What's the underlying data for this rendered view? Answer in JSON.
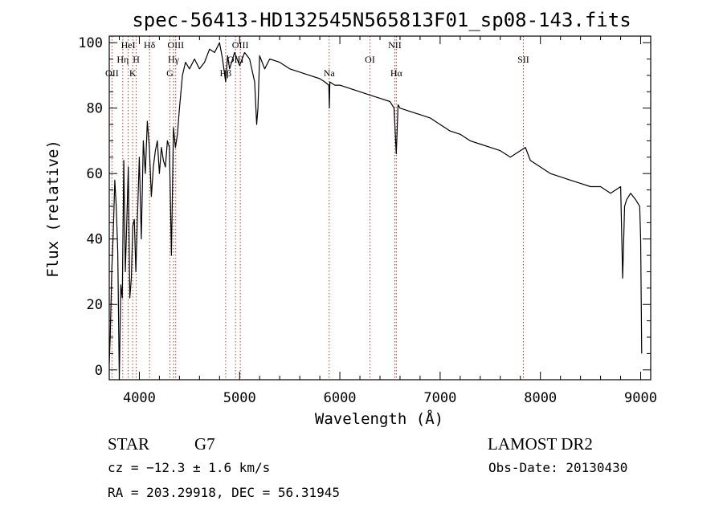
{
  "chart_data": {
    "type": "line",
    "title": "spec-56413-HD132545N565813F01_sp08-143.fits",
    "xlabel": "Wavelength (Å)",
    "ylabel": "Flux (relative)",
    "xlim": [
      3700,
      9100
    ],
    "ylim": [
      -3,
      102
    ],
    "x_ticks": [
      4000,
      5000,
      6000,
      7000,
      8000,
      9000
    ],
    "y_ticks": [
      0,
      20,
      40,
      60,
      80,
      100
    ],
    "grid": false,
    "series": [
      {
        "x": [
          3700,
          3710,
          3725,
          3740,
          3755,
          3770,
          3785,
          3800,
          3815,
          3830,
          3845,
          3860,
          3875,
          3890,
          3905,
          3920,
          3935,
          3950,
          3965,
          3980,
          4000,
          4020,
          4040,
          4060,
          4080,
          4100,
          4120,
          4140,
          4160,
          4180,
          4200,
          4220,
          4240,
          4260,
          4280,
          4300,
          4320,
          4340,
          4360,
          4380,
          4400,
          4430,
          4460,
          4500,
          4550,
          4600,
          4650,
          4700,
          4750,
          4800,
          4830,
          4861,
          4880,
          4900,
          4950,
          5000,
          5050,
          5100,
          5150,
          5170,
          5183,
          5200,
          5250,
          5300,
          5400,
          5500,
          5600,
          5700,
          5800,
          5850,
          5890,
          5895,
          5900,
          5950,
          6000,
          6100,
          6200,
          6300,
          6400,
          6500,
          6540,
          6563,
          6580,
          6600,
          6700,
          6800,
          6900,
          7000,
          7100,
          7200,
          7300,
          7400,
          7500,
          7600,
          7700,
          7750,
          7800,
          7850,
          7900,
          8000,
          8100,
          8200,
          8300,
          8400,
          8500,
          8600,
          8650,
          8700,
          8750,
          8800,
          8820,
          8840,
          8860,
          8900,
          8950,
          8990,
          9000,
          9010
        ],
        "y": [
          2,
          10,
          30,
          42,
          58,
          50,
          36,
          -3,
          26,
          22,
          64,
          30,
          45,
          62,
          22,
          28,
          44,
          46,
          30,
          45,
          65,
          40,
          70,
          60,
          76,
          68,
          53,
          62,
          67,
          70,
          60,
          68,
          64,
          62,
          70,
          68,
          35,
          74,
          68,
          72,
          80,
          90,
          94,
          92,
          95,
          92,
          94,
          98,
          97,
          100,
          95,
          88,
          96,
          92,
          97,
          93,
          97,
          95,
          88,
          75,
          80,
          96,
          92,
          95,
          94,
          92,
          91,
          90,
          89,
          88,
          87,
          80,
          88,
          87,
          87,
          86,
          85,
          84,
          83,
          82,
          80,
          66,
          81,
          80,
          79,
          78,
          77,
          75,
          73,
          72,
          70,
          69,
          68,
          67,
          65,
          66,
          67,
          68,
          64,
          62,
          60,
          59,
          58,
          57,
          56,
          56,
          55,
          54,
          55,
          56,
          28,
          50,
          52,
          54,
          52,
          50,
          40,
          5
        ]
      }
    ],
    "spectral_lines": [
      {
        "name": "OII",
        "x": 3727,
        "row": 3
      },
      {
        "name": "Hη",
        "x": 3835,
        "row": 2
      },
      {
        "name": "HeI",
        "x": 3889,
        "row": 1
      },
      {
        "name": "K",
        "x": 3934,
        "row": 3
      },
      {
        "name": "H",
        "x": 3969,
        "row": 2
      },
      {
        "name": "Hδ",
        "x": 4102,
        "row": 1
      },
      {
        "name": "G",
        "x": 4305,
        "row": 3
      },
      {
        "name": "Hγ",
        "x": 4341,
        "row": 2
      },
      {
        "name": "OIII",
        "x": 4363,
        "row": 1
      },
      {
        "name": "Hβ",
        "x": 4861,
        "row": 3
      },
      {
        "name": "OIII",
        "x": 4959,
        "row": 2
      },
      {
        "name": "OIII",
        "x": 5007,
        "row": 1
      },
      {
        "name": "Na",
        "x": 5893,
        "row": 3
      },
      {
        "name": "OI",
        "x": 6300,
        "row": 2
      },
      {
        "name": "NII",
        "x": 6548,
        "row": 1
      },
      {
        "name": "Hα",
        "x": 6563,
        "row": 3
      },
      {
        "name": "SII",
        "x": 7830,
        "row": 2
      }
    ]
  },
  "info": {
    "object_class": "STAR",
    "subclass": "G7",
    "survey": "LAMOST DR2",
    "redshift": "cz = −12.3 ± 1.6 km/s",
    "obs_date": "Obs-Date: 20130430",
    "coords": "RA = 203.29918, DEC =  56.31945"
  }
}
